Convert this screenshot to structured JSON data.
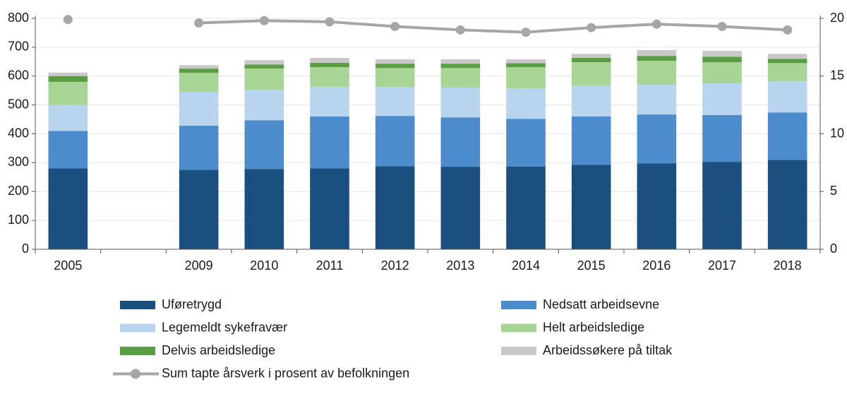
{
  "chart_data": {
    "type": "bar",
    "categories": [
      "2005",
      null,
      "2009",
      "2010",
      "2011",
      "2012",
      "2013",
      "2014",
      "2015",
      "2016",
      "2017",
      "2018"
    ],
    "stacked": true,
    "series": [
      {
        "name": "Uføretrygd",
        "color": "#1a4f80",
        "values": [
          280,
          null,
          275,
          278,
          280,
          288,
          286,
          287,
          293,
          298,
          303,
          310
        ]
      },
      {
        "name": "Nedsatt arbeidsevne",
        "color": "#4c8ccc",
        "values": [
          130,
          null,
          153,
          169,
          180,
          174,
          171,
          165,
          167,
          169,
          162,
          164
        ]
      },
      {
        "name": "Legemeldt sykefravær",
        "color": "#b8d4ef",
        "values": [
          90,
          null,
          117,
          105,
          103,
          100,
          103,
          105,
          107,
          103,
          110,
          108
        ]
      },
      {
        "name": "Helt arbeidsledige",
        "color": "#a8d495",
        "values": [
          80,
          null,
          66,
          74,
          68,
          66,
          68,
          74,
          81,
          83,
          73,
          63
        ]
      },
      {
        "name": "Delvis arbeidsledige",
        "color": "#5a9e44",
        "values": [
          20,
          null,
          15,
          14,
          15,
          15,
          15,
          14,
          15,
          17,
          19,
          15
        ]
      },
      {
        "name": "Arbeidssøkere på tiltak",
        "color": "#c8c8c8",
        "values": [
          12,
          null,
          12,
          15,
          17,
          15,
          15,
          13,
          14,
          20,
          20,
          17
        ]
      },
      {
        "name": "Sum tapte årsverk i prosent av befolkningen",
        "color": "#a6a6a6",
        "type": "line",
        "axis": "y2",
        "values": [
          19.9,
          null,
          19.6,
          19.8,
          19.7,
          19.3,
          19.0,
          18.8,
          19.2,
          19.5,
          19.3,
          19.0
        ]
      }
    ],
    "ylim": [
      0,
      800
    ],
    "yticks": [
      0,
      100,
      200,
      300,
      400,
      500,
      600,
      700,
      800
    ],
    "y2lim": [
      0,
      20
    ],
    "y2ticks": [
      0,
      5,
      10,
      15,
      20
    ],
    "grid": true
  }
}
